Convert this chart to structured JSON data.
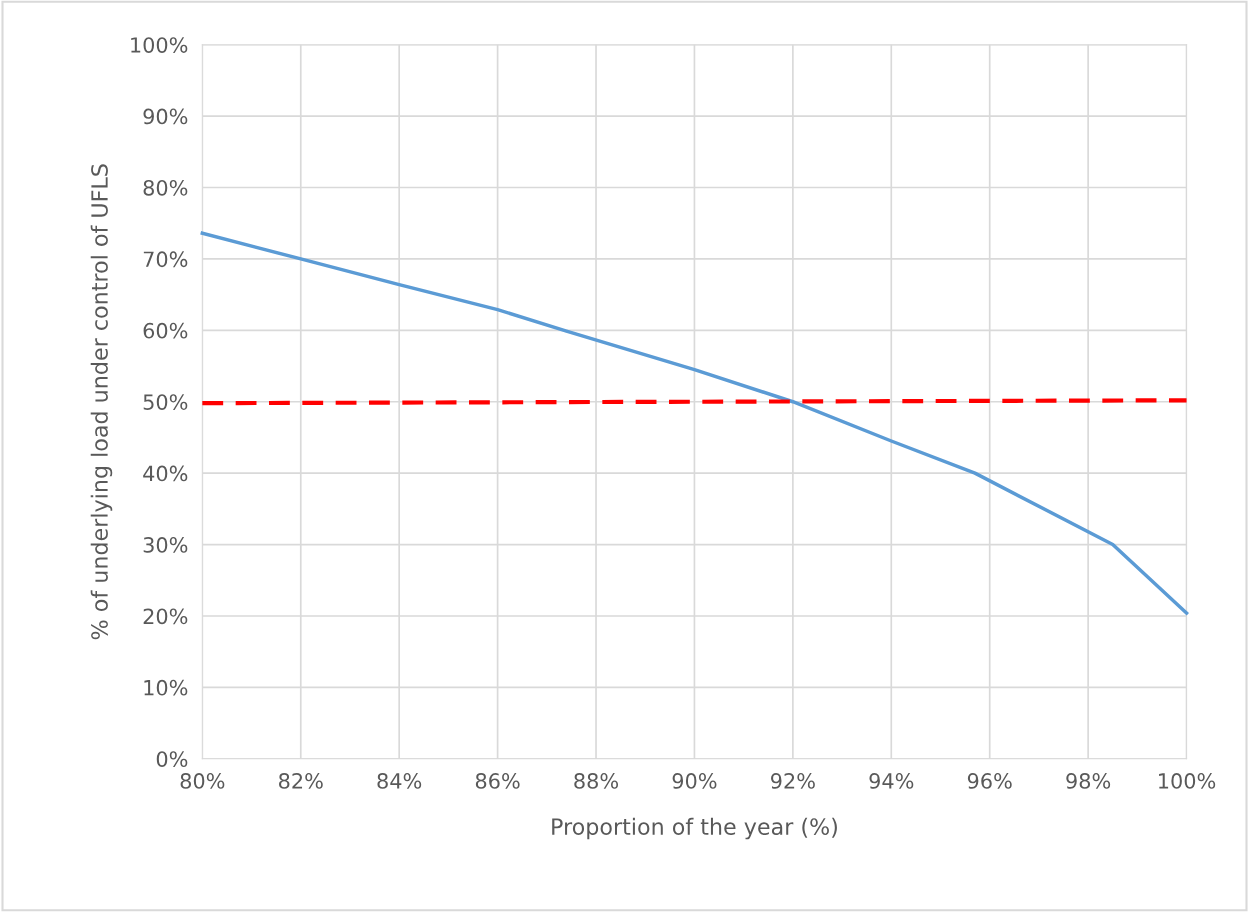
{
  "chart_data": {
    "type": "line",
    "xlabel": "Proportion of the year (%)",
    "ylabel": "% of underlying load under control of UFLS",
    "series": [
      {
        "color": "#5b9bd5",
        "line_style": "solid",
        "x": [
          80,
          82,
          84,
          86,
          87.4,
          90,
          92,
          94,
          95.7,
          98.5,
          100
        ],
        "values": [
          73.6,
          70,
          66.4,
          62.9,
          59.9,
          54.5,
          50,
          44.5,
          40,
          30,
          20.4
        ]
      },
      {
        "color": "#ff0000",
        "line_style": "dashed",
        "x": [
          80,
          100
        ],
        "values": [
          49.8,
          50.2
        ]
      }
    ],
    "xlim": [
      80,
      100
    ],
    "xticks": [
      {
        "value": 80,
        "label": "80%"
      },
      {
        "value": 82,
        "label": "82%"
      },
      {
        "value": 84,
        "label": "84%"
      },
      {
        "value": 86,
        "label": "86%"
      },
      {
        "value": 88,
        "label": "88%"
      },
      {
        "value": 90,
        "label": "90%"
      },
      {
        "value": 92,
        "label": "92%"
      },
      {
        "value": 94,
        "label": "94%"
      },
      {
        "value": 96,
        "label": "96%"
      },
      {
        "value": 98,
        "label": "98%"
      },
      {
        "value": 100,
        "label": "100%"
      }
    ],
    "ylim": [
      0,
      100
    ],
    "yticks": [
      {
        "value": 0,
        "label": "0%"
      },
      {
        "value": 10,
        "label": "10%"
      },
      {
        "value": 20,
        "label": "20%"
      },
      {
        "value": 30,
        "label": "30%"
      },
      {
        "value": 40,
        "label": "40%"
      },
      {
        "value": 50,
        "label": "50%"
      },
      {
        "value": 60,
        "label": "60%"
      },
      {
        "value": 70,
        "label": "70%"
      },
      {
        "value": 80,
        "label": "80%"
      },
      {
        "value": 90,
        "label": "90%"
      },
      {
        "value": 100,
        "label": "100%"
      }
    ],
    "grid": true,
    "marker": "none"
  }
}
